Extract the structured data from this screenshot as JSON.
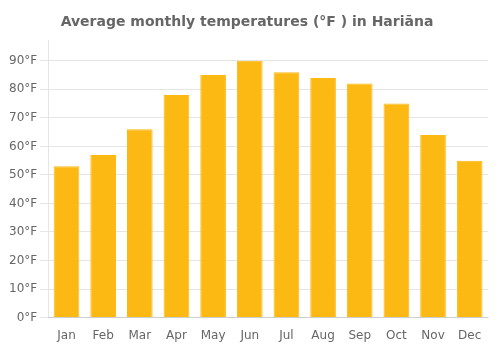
{
  "chart_data": {
    "type": "bar",
    "title": "Average monthly temperatures (°F ) in Hariāna",
    "categories": [
      "Jan",
      "Feb",
      "Mar",
      "Apr",
      "May",
      "Jun",
      "Jul",
      "Aug",
      "Sep",
      "Oct",
      "Nov",
      "Dec"
    ],
    "values": [
      53,
      57,
      66,
      78,
      85,
      90,
      86,
      84,
      82,
      75,
      64,
      55
    ],
    "color": "#FDB913",
    "ylim": [
      0,
      97
    ],
    "yticks": [
      {
        "value": 0,
        "label": "0°F"
      },
      {
        "value": 10,
        "label": "10°F"
      },
      {
        "value": 20,
        "label": "20°F"
      },
      {
        "value": 30,
        "label": "30°F"
      },
      {
        "value": 40,
        "label": "40°F"
      },
      {
        "value": 50,
        "label": "50°F"
      },
      {
        "value": 60,
        "label": "60°F"
      },
      {
        "value": 70,
        "label": "70°F"
      },
      {
        "value": 80,
        "label": "80°F"
      },
      {
        "value": 90,
        "label": "90°F"
      }
    ],
    "grid": true
  }
}
